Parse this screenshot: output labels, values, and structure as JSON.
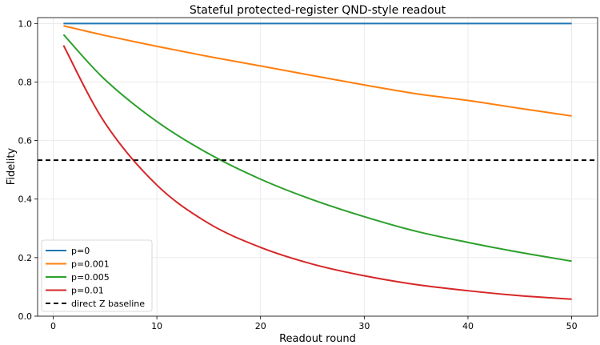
{
  "chart_data": {
    "type": "line",
    "title": "Stateful protected-register QND-style readout",
    "xlabel": "Readout round",
    "ylabel": "Fidelity",
    "xlim": [
      -1.5,
      52.5
    ],
    "ylim": [
      0,
      1.02
    ],
    "xticks": [
      0,
      10,
      20,
      30,
      40,
      50
    ],
    "yticks": [
      0.0,
      0.2,
      0.4,
      0.6,
      0.8,
      1.0
    ],
    "xtick_labels": [
      "0",
      "10",
      "20",
      "30",
      "40",
      "50"
    ],
    "ytick_labels": [
      "0.0",
      "0.2",
      "0.4",
      "0.6",
      "0.8",
      "1.0"
    ],
    "grid": true,
    "legend_position": "lower-left",
    "x": [
      1,
      5,
      10,
      15,
      20,
      25,
      30,
      35,
      40,
      45,
      50
    ],
    "series": [
      {
        "name": "p=0",
        "color": "#1f77b4",
        "style": "solid",
        "values": [
          1.0,
          1.0,
          1.0,
          1.0,
          1.0,
          1.0,
          1.0,
          1.0,
          1.0,
          1.0,
          1.0
        ]
      },
      {
        "name": "p=0.001",
        "color": "#ff7f0e",
        "style": "solid",
        "values": [
          0.992,
          0.959,
          0.922,
          0.887,
          0.855,
          0.822,
          0.79,
          0.76,
          0.737,
          0.71,
          0.684
        ]
      },
      {
        "name": "p=0.005",
        "color": "#2ca02c",
        "style": "solid",
        "values": [
          0.962,
          0.808,
          0.665,
          0.555,
          0.468,
          0.398,
          0.34,
          0.29,
          0.252,
          0.218,
          0.188
        ]
      },
      {
        "name": "p=0.01",
        "color": "#d62728",
        "style": "solid",
        "values": [
          0.925,
          0.66,
          0.448,
          0.317,
          0.235,
          0.178,
          0.138,
          0.108,
          0.087,
          0.07,
          0.058
        ]
      },
      {
        "name": "direct Z baseline",
        "color": "#000000",
        "style": "dashed",
        "values": [
          0.533,
          0.533,
          0.533,
          0.533,
          0.533,
          0.533,
          0.533,
          0.533,
          0.533,
          0.533,
          0.533
        ]
      }
    ]
  }
}
